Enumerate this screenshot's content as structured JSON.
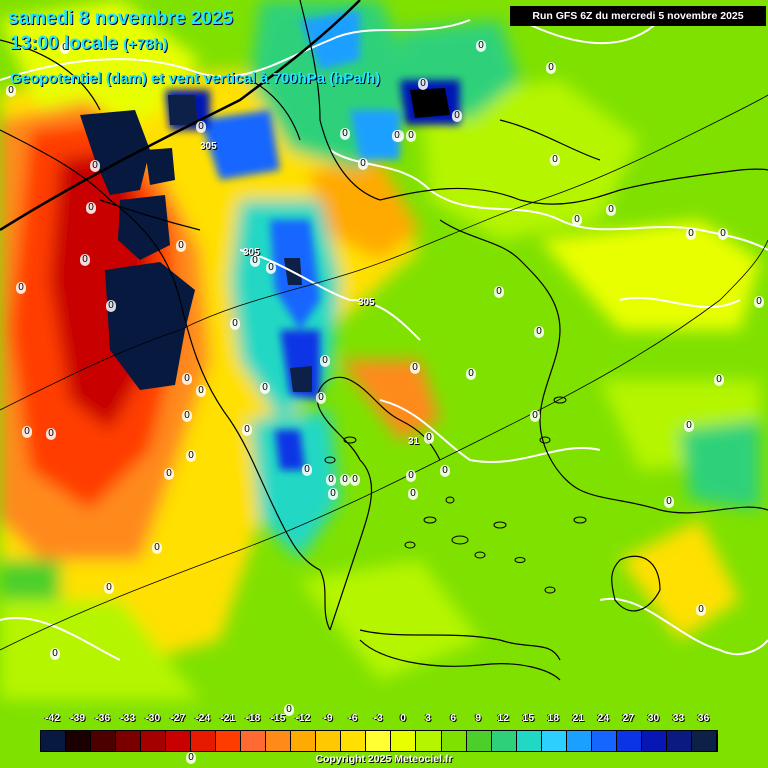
{
  "header": {
    "date": "samedi 8 novembre 2025",
    "time": "13:00 locale",
    "lead": "(+78h)",
    "parameter": "Geopotentiel (dam) et vent vertical à 700hPa (hPa/h)",
    "run": "Run GFS 6Z du mercredi 5 novembre 2025"
  },
  "contour_labels": [
    "305",
    "305",
    "305",
    "31"
  ],
  "zero_label": "0",
  "legend": {
    "ticks": [
      "-42",
      "-39",
      "-36",
      "-33",
      "-30",
      "-27",
      "-24",
      "-21",
      "-18",
      "-15",
      "-12",
      "-9",
      "-6",
      "-3",
      "0",
      "3",
      "6",
      "9",
      "12",
      "15",
      "18",
      "21",
      "24",
      "27",
      "30",
      "33",
      "36"
    ],
    "bottom_zero": "0",
    "colors": [
      "#07193f",
      "#1a0000",
      "#4d0000",
      "#7a0000",
      "#a40000",
      "#c80000",
      "#e61a00",
      "#ff3c00",
      "#ff6a33",
      "#ff8a1a",
      "#ffaa00",
      "#ffc800",
      "#ffe000",
      "#ffff33",
      "#e8ff00",
      "#b5f500",
      "#7fe100",
      "#4ccf2a",
      "#2ed17a",
      "#21d8c4",
      "#2bd0ff",
      "#1aa0ff",
      "#1566ff",
      "#0a34e6",
      "#0617b4",
      "#0a1a80",
      "#0d2047"
    ]
  },
  "copyright": "Copyright 2025 Meteociel.fr",
  "colors": {
    "title": "#22e6ff",
    "coast": "#000000",
    "contour": "#ffffff",
    "background_field": "#7fe100"
  }
}
